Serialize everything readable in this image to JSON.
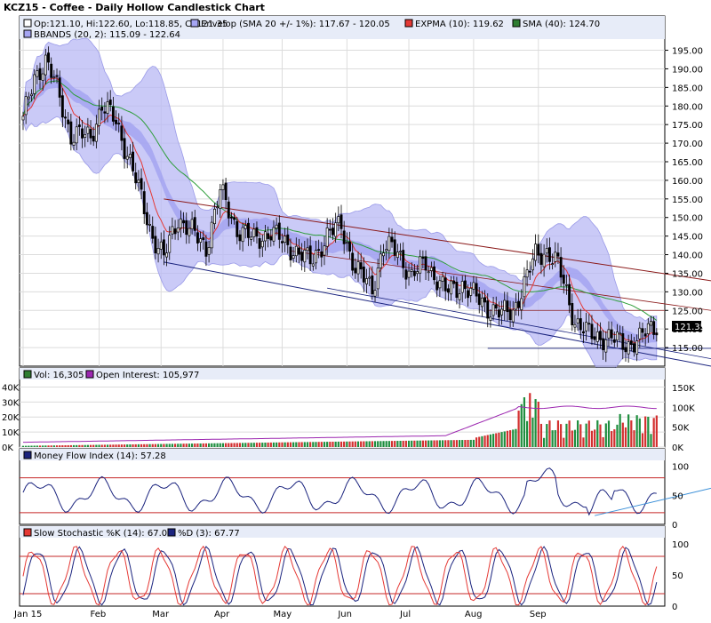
{
  "chart_data": {
    "type": "candlestick",
    "title": "KCZ15 - Coffee - Daily Hollow Candlestick Chart",
    "x_labels": [
      "Jan 15",
      "Feb",
      "Mar",
      "Apr",
      "May",
      "Jun",
      "Jul",
      "Aug",
      "Sep"
    ],
    "legend": {
      "ohlc": "Op:121.10, Hi:122.60, Lo:118.85, Cl:121.35",
      "envelope": "Envelop (SMA 20 +/- 1%): 117.67 - 120.05",
      "expma": "EXPMA (10): 119.62",
      "sma": "SMA (40): 124.70",
      "bbands": "BBANDS (20, 2): 115.09 - 122.64"
    },
    "last_price_label": "121.35",
    "price_axis": {
      "ylim": [
        110,
        198
      ],
      "ticks": [
        "195.00",
        "190.00",
        "185.00",
        "180.00",
        "175.00",
        "170.00",
        "165.00",
        "160.00",
        "155.00",
        "150.00",
        "145.00",
        "140.00",
        "135.00",
        "130.00",
        "125.00",
        "120.00",
        "115.00"
      ]
    },
    "price_anchors": [
      [
        0,
        176
      ],
      [
        4,
        188
      ],
      [
        8,
        192
      ],
      [
        12,
        185
      ],
      [
        17,
        172
      ],
      [
        24,
        172
      ],
      [
        28,
        180
      ],
      [
        33,
        176
      ],
      [
        38,
        165
      ],
      [
        42,
        155
      ],
      [
        46,
        145
      ],
      [
        50,
        139
      ],
      [
        55,
        150
      ],
      [
        60,
        146
      ],
      [
        65,
        142
      ],
      [
        70,
        157
      ],
      [
        76,
        147
      ],
      [
        82,
        144
      ],
      [
        88,
        146
      ],
      [
        95,
        142
      ],
      [
        102,
        138
      ],
      [
        108,
        145
      ],
      [
        113,
        148
      ],
      [
        118,
        136
      ],
      [
        124,
        131
      ],
      [
        128,
        142
      ],
      [
        133,
        141
      ],
      [
        138,
        134
      ],
      [
        143,
        138
      ],
      [
        150,
        130
      ],
      [
        156,
        132
      ],
      [
        160,
        129
      ],
      [
        165,
        126
      ],
      [
        170,
        124
      ],
      [
        174,
        125
      ],
      [
        178,
        132
      ],
      [
        182,
        140
      ],
      [
        186,
        141
      ],
      [
        190,
        137
      ],
      [
        193,
        130
      ],
      [
        196,
        122
      ],
      [
        200,
        119
      ],
      [
        205,
        118
      ],
      [
        210,
        117
      ],
      [
        215,
        116
      ],
      [
        219,
        117
      ],
      [
        222,
        120
      ],
      [
        225,
        121.35
      ]
    ],
    "channel_lines": [
      {
        "color": "#8b1a1a",
        "from": [
          0,
          155
        ],
        "to": [
          1,
          133
        ]
      },
      {
        "color": "#1a237e",
        "from": [
          0,
          138
        ],
        "to": [
          1,
          110
        ]
      }
    ],
    "volume_panel": {
      "label": "Vol: 16,305",
      "oi_label": "Open Interest: 105,977",
      "left_ticks": [
        "40K",
        "30K",
        "20K",
        "10K",
        "0K"
      ],
      "right_ticks": [
        "150K",
        "100K",
        "50K",
        "0K"
      ]
    },
    "mfi_panel": {
      "label": "Money Flow Index (14): 57.28",
      "ticks": [
        "100",
        "50",
        "0"
      ]
    },
    "stoch_panel": {
      "label": "Slow Stochastic %K (14): 67.05",
      "d_label": "%D (3): 67.77",
      "ticks": [
        "100",
        "50",
        "0"
      ]
    }
  }
}
